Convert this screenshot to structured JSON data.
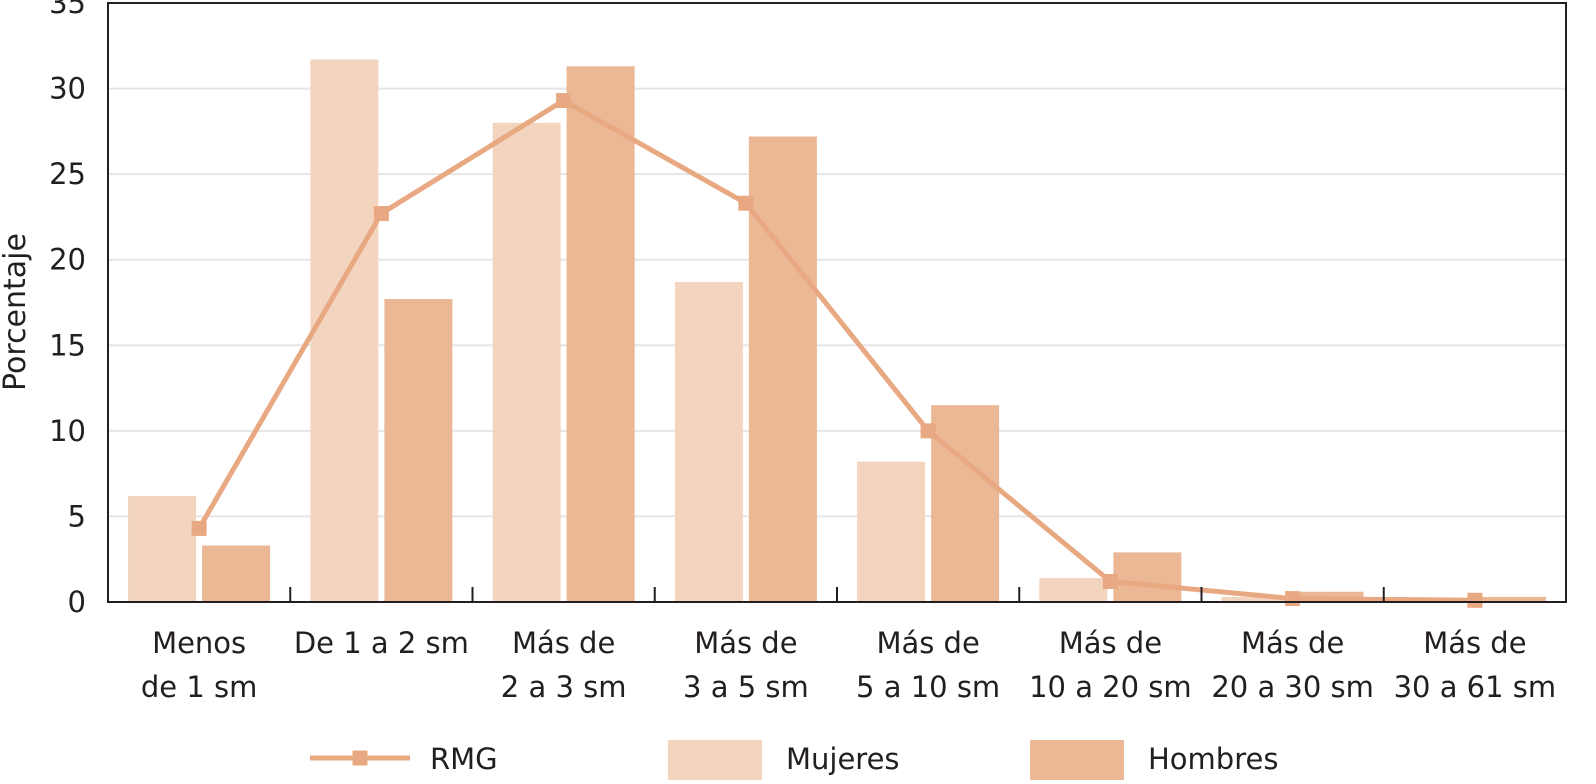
{
  "chart_data": {
    "type": "bar",
    "ylabel": "Porcentaje",
    "xlabel": "",
    "ylim": [
      0,
      35
    ],
    "yticks": [
      "0",
      "5",
      "10",
      "15",
      "20",
      "25",
      "30",
      "35"
    ],
    "grid": true,
    "legend_position": "bottom",
    "categories": [
      [
        "Menos",
        "de 1 sm"
      ],
      [
        "De 1 a 2 sm"
      ],
      [
        "Más de",
        "2 a 3 sm"
      ],
      [
        "Más de",
        "3 a 5 sm"
      ],
      [
        "Más de",
        "5 a 10 sm"
      ],
      [
        "Más de",
        "10 a 20 sm"
      ],
      [
        "Más de",
        "20 a 30 sm"
      ],
      [
        "Más de",
        "30 a 61 sm"
      ]
    ],
    "series": [
      {
        "name": "Mujeres",
        "kind": "bar",
        "color": "#f3d5bf",
        "values": [
          6.2,
          31.7,
          28.0,
          18.7,
          8.2,
          1.4,
          0.3,
          0.1
        ]
      },
      {
        "name": "Hombres",
        "kind": "bar",
        "color": "#ebb795",
        "values": [
          3.3,
          17.7,
          31.3,
          27.2,
          11.5,
          2.9,
          0.6,
          0.3
        ]
      },
      {
        "name": "RMG",
        "kind": "line",
        "color": "#e8a982",
        "values": [
          4.3,
          22.7,
          29.3,
          23.3,
          10.0,
          1.2,
          0.2,
          0.1
        ]
      }
    ]
  }
}
